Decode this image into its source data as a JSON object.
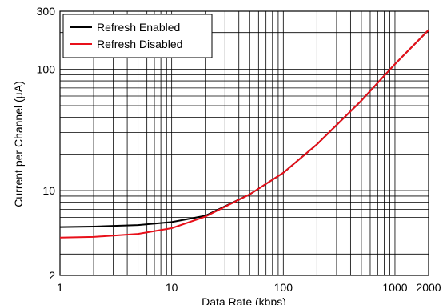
{
  "chart_data": {
    "type": "line",
    "x_label": "Data Rate (kbps)",
    "y_label": "Current per Channel (µA)",
    "x": [
      1,
      2,
      5,
      10,
      20,
      50,
      100,
      200,
      500,
      1000,
      2000
    ],
    "series": [
      {
        "name": "Refresh Enabled",
        "color": "#000000",
        "values": [
          5.0,
          5.05,
          5.2,
          5.5,
          6.2,
          9.3,
          14,
          24,
          55,
          110,
          210
        ]
      },
      {
        "name": "Refresh Disabled",
        "color": "#e8101a",
        "values": [
          4.1,
          4.15,
          4.4,
          4.9,
          6.1,
          9.3,
          14,
          24,
          55,
          110,
          210
        ]
      }
    ],
    "xlim": [
      1,
      2000
    ],
    "ylim": [
      2,
      300
    ],
    "xticks": [
      1,
      10,
      100,
      1000,
      2000
    ],
    "yticks": [
      2,
      10,
      100,
      300
    ],
    "x_minor_grid": [
      2,
      3,
      4,
      5,
      6,
      7,
      8,
      9,
      20,
      30,
      40,
      50,
      60,
      70,
      80,
      90,
      200,
      300,
      400,
      500,
      600,
      700,
      800,
      900
    ],
    "y_minor_grid": [
      3,
      4,
      5,
      6,
      7,
      8,
      9,
      20,
      30,
      40,
      50,
      60,
      70,
      80,
      90,
      200
    ],
    "log_x": true,
    "log_y": true,
    "grid": true,
    "legend": "upper left"
  }
}
